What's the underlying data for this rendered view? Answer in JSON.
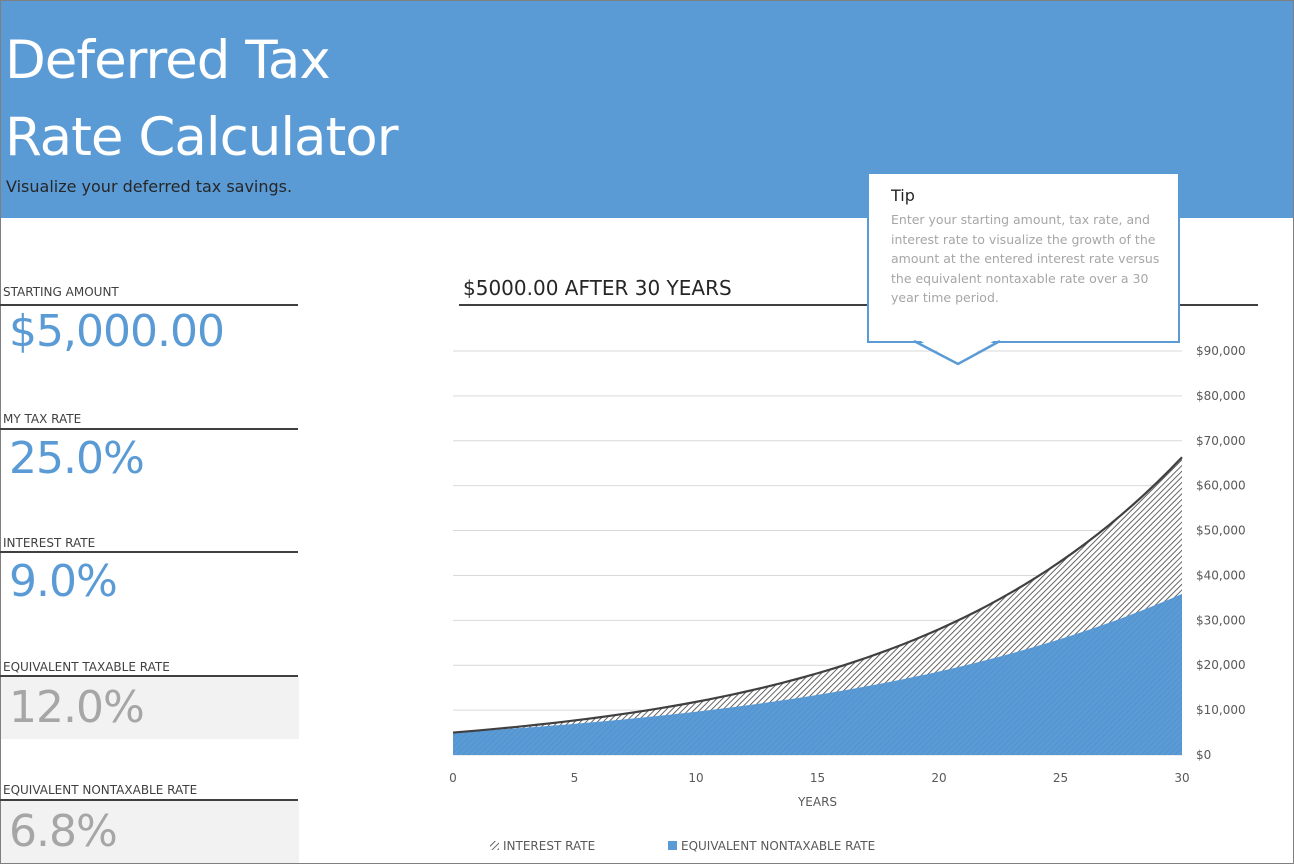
{
  "header": {
    "title_line1": "Deferred Tax",
    "title_line2": "Rate Calculator",
    "subtitle": "Visualize your deferred tax savings."
  },
  "fields": {
    "starting_amount": {
      "label": "STARTING AMOUNT",
      "value": "$5,000.00"
    },
    "tax_rate": {
      "label": "MY TAX RATE",
      "value": "25.0%"
    },
    "interest_rate": {
      "label": "INTEREST RATE",
      "value": "9.0%"
    },
    "equivalent_taxable_rate": {
      "label": "EQUIVALENT TAXABLE RATE",
      "value": "12.0%"
    },
    "equivalent_nontaxable_rate": {
      "label": "EQUIVALENT NONTAXABLE RATE",
      "value": "6.8%"
    }
  },
  "tip": {
    "title": "Tip",
    "body": "Enter your starting amount, tax rate, and interest rate to visualize the growth of the amount at the entered interest rate versus the equivalent nontaxable rate over a 30 year time period."
  },
  "colors": {
    "accent": "#5b9bd5",
    "calc_text": "#a6a6a6",
    "calc_bg": "#f2f2f2"
  },
  "chart_data": {
    "type": "area",
    "title": "$5000.00 AFTER 30 YEARS",
    "xlabel": "YEARS",
    "ylabel": "",
    "xlim": [
      0,
      30
    ],
    "ylim": [
      0,
      90000
    ],
    "x_ticks": [
      "0",
      "5",
      "10",
      "15",
      "20",
      "25",
      "30"
    ],
    "y_ticks": [
      "$0",
      "$10,000",
      "$20,000",
      "$30,000",
      "$40,000",
      "$50,000",
      "$60,000",
      "$70,000",
      "$80,000",
      "$90,000"
    ],
    "y_axis_side": "right",
    "grid": true,
    "legend_position": "bottom",
    "x": [
      0,
      5,
      10,
      15,
      20,
      25,
      30
    ],
    "series": [
      {
        "name": "INTEREST RATE",
        "values": [
          5000,
          7693,
          11837,
          18212,
          28022,
          43115,
          66338
        ],
        "style": "hatched"
      },
      {
        "name": "EQUIVALENT NONTAXABLE RATE",
        "values": [
          5000,
          6944,
          9644,
          13394,
          18602,
          25835,
          35881
        ],
        "style": "solid-blue"
      }
    ]
  }
}
